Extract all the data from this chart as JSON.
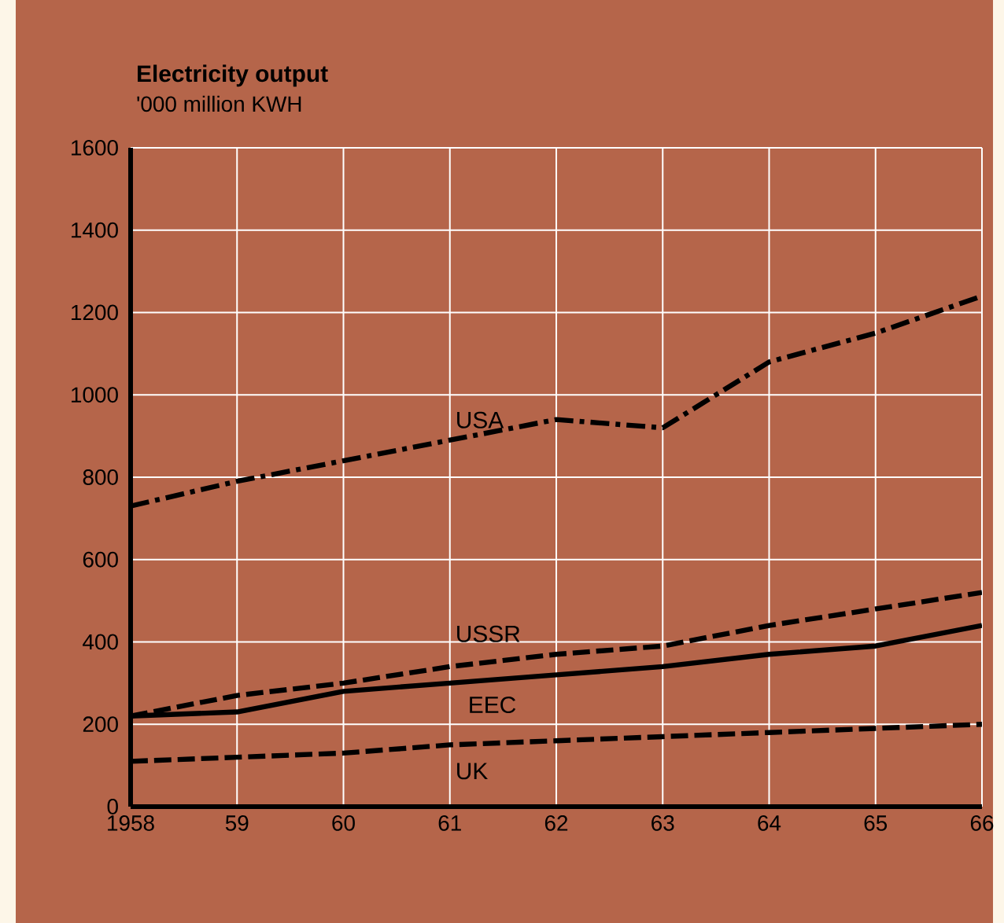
{
  "chart_data": {
    "type": "line",
    "title": "Electricity output",
    "subtitle": "'000 million KWH",
    "x": [
      1958,
      1959,
      1960,
      1961,
      1962,
      1963,
      1964,
      1965,
      1966
    ],
    "xlim": [
      1958,
      1966
    ],
    "ylim": [
      0,
      1600
    ],
    "xticks": [
      {
        "value": 1958,
        "label": "1958"
      },
      {
        "value": 1959,
        "label": "59"
      },
      {
        "value": 1960,
        "label": "60"
      },
      {
        "value": 1961,
        "label": "61"
      },
      {
        "value": 1962,
        "label": "62"
      },
      {
        "value": 1963,
        "label": "63"
      },
      {
        "value": 1964,
        "label": "64"
      },
      {
        "value": 1965,
        "label": "65"
      },
      {
        "value": 1966,
        "label": "66"
      }
    ],
    "yticks": [
      0,
      200,
      400,
      600,
      800,
      1000,
      1200,
      1400,
      1600
    ],
    "grid": true,
    "legend": false,
    "marker": "none",
    "series": [
      {
        "name": "USA",
        "color": "#000000",
        "line_style": "dashdot",
        "values": [
          730,
          790,
          840,
          890,
          940,
          920,
          1080,
          1150,
          1240
        ]
      },
      {
        "name": "USSR",
        "color": "#000000",
        "line_style": "dashed",
        "values": [
          220,
          270,
          300,
          340,
          370,
          390,
          440,
          480,
          520
        ]
      },
      {
        "name": "EEC",
        "color": "#000000",
        "line_style": "solid",
        "values": [
          220,
          230,
          280,
          300,
          320,
          340,
          370,
          390,
          440
        ]
      },
      {
        "name": "UK",
        "color": "#000000",
        "line_style": "dashed",
        "values": [
          110,
          120,
          130,
          150,
          160,
          170,
          180,
          190,
          200
        ]
      }
    ]
  }
}
